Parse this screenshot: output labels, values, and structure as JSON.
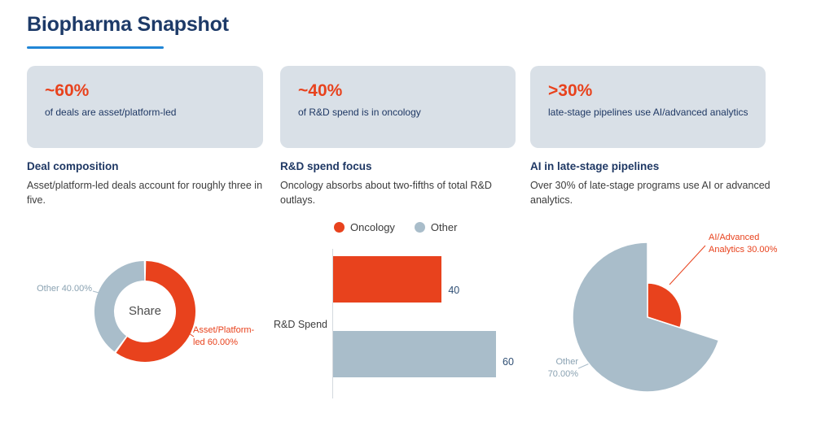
{
  "page": {
    "title": "Biopharma Snapshot"
  },
  "colors": {
    "accent_red": "#e8421d",
    "slice_gray": "#a9bdca",
    "navy": "#1f3864",
    "underline_blue": "#2186d6",
    "card_bg": "#d9e0e7"
  },
  "cards": [
    {
      "stat": "~60%",
      "desc": "of deals are asset/platform-led"
    },
    {
      "stat": "~40%",
      "desc": "of R&D spend is in oncology"
    },
    {
      "stat": ">30%",
      "desc": "late-stage pipelines use AI/advanced analytics"
    }
  ],
  "sections": [
    {
      "heading": "Deal composition",
      "body": "Asset/platform-led deals account for roughly three in five."
    },
    {
      "heading": "R&D spend focus",
      "body": "Oncology absorbs about two-fifths of total R&D outlays."
    },
    {
      "heading": "AI in late-stage pipelines",
      "body": "Over 30% of late-stage programs use AI or advanced analytics."
    }
  ],
  "chart_data": [
    {
      "type": "pie",
      "subtype": "donut",
      "center_label": "Share",
      "labels": [
        "Asset/Platform-led",
        "Other"
      ],
      "values": [
        60,
        40
      ],
      "colors": [
        "#e8421d",
        "#a9bdca"
      ],
      "callouts": [
        "Asset/Platform-led 60.00%",
        "Other 40.00%"
      ]
    },
    {
      "type": "bar",
      "orientation": "horizontal",
      "category_label": "R&D Spend",
      "legend": [
        "Oncology",
        "Other"
      ],
      "series": [
        {
          "name": "Oncology",
          "value": 40,
          "color": "#e8421d"
        },
        {
          "name": "Other",
          "value": 60,
          "color": "#a9bdca"
        }
      ],
      "value_labels": [
        "40",
        "60"
      ],
      "xmax": 60
    },
    {
      "type": "pie",
      "labels": [
        "AI/Advanced Analytics",
        "Other"
      ],
      "values": [
        30,
        70
      ],
      "colors": [
        "#e8421d",
        "#a9bdca"
      ],
      "callouts": [
        "AI/Advanced Analytics 30.00%",
        "Other 70.00%"
      ]
    }
  ]
}
